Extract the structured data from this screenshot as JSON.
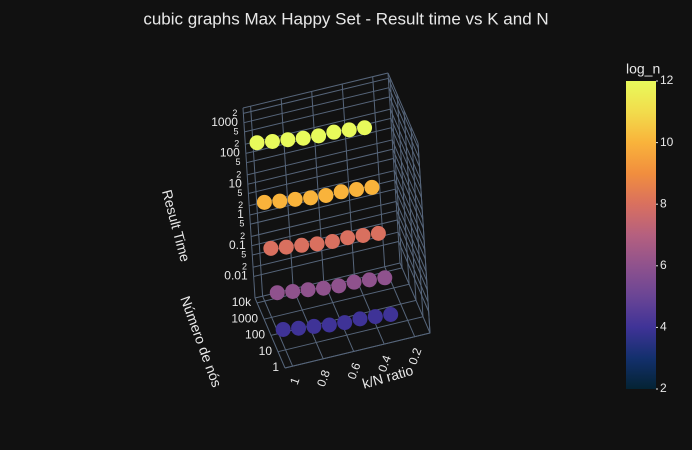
{
  "chart_data": {
    "type": "scatter3d",
    "title": "cubic graphs Max Happy Set - Result time vs K and N",
    "x_label": "k/N ratio",
    "y_label": "Número de nós",
    "z_label": "Result Time",
    "colorbar_title": "log_n",
    "x": [
      0.3,
      0.4,
      0.5,
      0.6,
      0.7,
      0.8,
      0.9,
      1.0,
      0.3,
      0.4,
      0.5,
      0.6,
      0.7,
      0.8,
      0.9,
      1.0,
      0.3,
      0.4,
      0.5,
      0.6,
      0.7,
      0.8,
      0.9,
      1.0,
      0.3,
      0.4,
      0.5,
      0.6,
      0.7,
      0.8,
      0.9,
      1.0,
      0.3,
      0.4,
      0.5,
      0.6,
      0.7,
      0.8,
      0.9,
      1.0
    ],
    "y": [
      16,
      16,
      16,
      16,
      16,
      16,
      16,
      16,
      64,
      64,
      64,
      64,
      64,
      64,
      64,
      64,
      256,
      256,
      256,
      256,
      256,
      256,
      256,
      256,
      1024,
      1024,
      1024,
      1024,
      1024,
      1024,
      1024,
      1024,
      4096,
      4096,
      4096,
      4096,
      4096,
      4096,
      4096,
      4096
    ],
    "z": [
      0.0032,
      0.0036,
      0.004,
      0.004,
      0.0044,
      0.0052,
      0.006,
      0.0072,
      0.024,
      0.027,
      0.03,
      0.03,
      0.033,
      0.039,
      0.045,
      0.054,
      0.32,
      0.36,
      0.4,
      0.4,
      0.44,
      0.52,
      0.6,
      0.72,
      4.8,
      5.4,
      6,
      6,
      6.6,
      7.8,
      9,
      10.8,
      200,
      225,
      250,
      250,
      275,
      325,
      375,
      450
    ],
    "color_values": [
      4,
      4,
      4,
      4,
      4,
      4,
      4,
      4,
      6,
      6,
      6,
      6,
      6,
      6,
      6,
      6,
      8,
      8,
      8,
      8,
      8,
      8,
      8,
      8,
      10,
      10,
      10,
      10,
      10,
      10,
      10,
      10,
      12,
      12,
      12,
      12,
      12,
      12,
      12,
      12
    ],
    "colorscale": [
      "#042333",
      "#13306d",
      "#3f3397",
      "#6a4595",
      "#8f528d",
      "#b5607f",
      "#d9705f",
      "#f18e3e",
      "#f9b33b",
      "#f2dc4c",
      "#e8fa5b"
    ],
    "cmin": 2,
    "cmax": 12,
    "colorbar_ticks": [
      2,
      4,
      6,
      8,
      10,
      12
    ],
    "xlim": [
      1.05,
      0.1
    ],
    "xticks": [
      1,
      0.8,
      0.6,
      0.4,
      0.2
    ],
    "ylim": [
      1,
      20000
    ],
    "ylog": true,
    "yticks": [
      1,
      10,
      100,
      1000,
      {
        "value": 10000,
        "label": "10k"
      }
    ],
    "zlim": [
      0.002,
      3000
    ],
    "zlog": true,
    "zticks": [
      0.01,
      {
        "value": 0.02,
        "label": "2"
      },
      {
        "value": 0.05,
        "label": "5"
      },
      0.1,
      {
        "value": 0.2,
        "label": "2"
      },
      {
        "value": 0.5,
        "label": "5"
      },
      1,
      {
        "value": 2,
        "label": "2"
      },
      {
        "value": 5,
        "label": "5"
      },
      10,
      {
        "value": 20,
        "label": "2"
      },
      {
        "value": 50,
        "label": "5"
      },
      100,
      {
        "value": 200,
        "label": "2"
      },
      {
        "value": 500,
        "label": "5"
      },
      1000,
      {
        "value": 2000,
        "label": "2"
      }
    ],
    "grid": true
  }
}
